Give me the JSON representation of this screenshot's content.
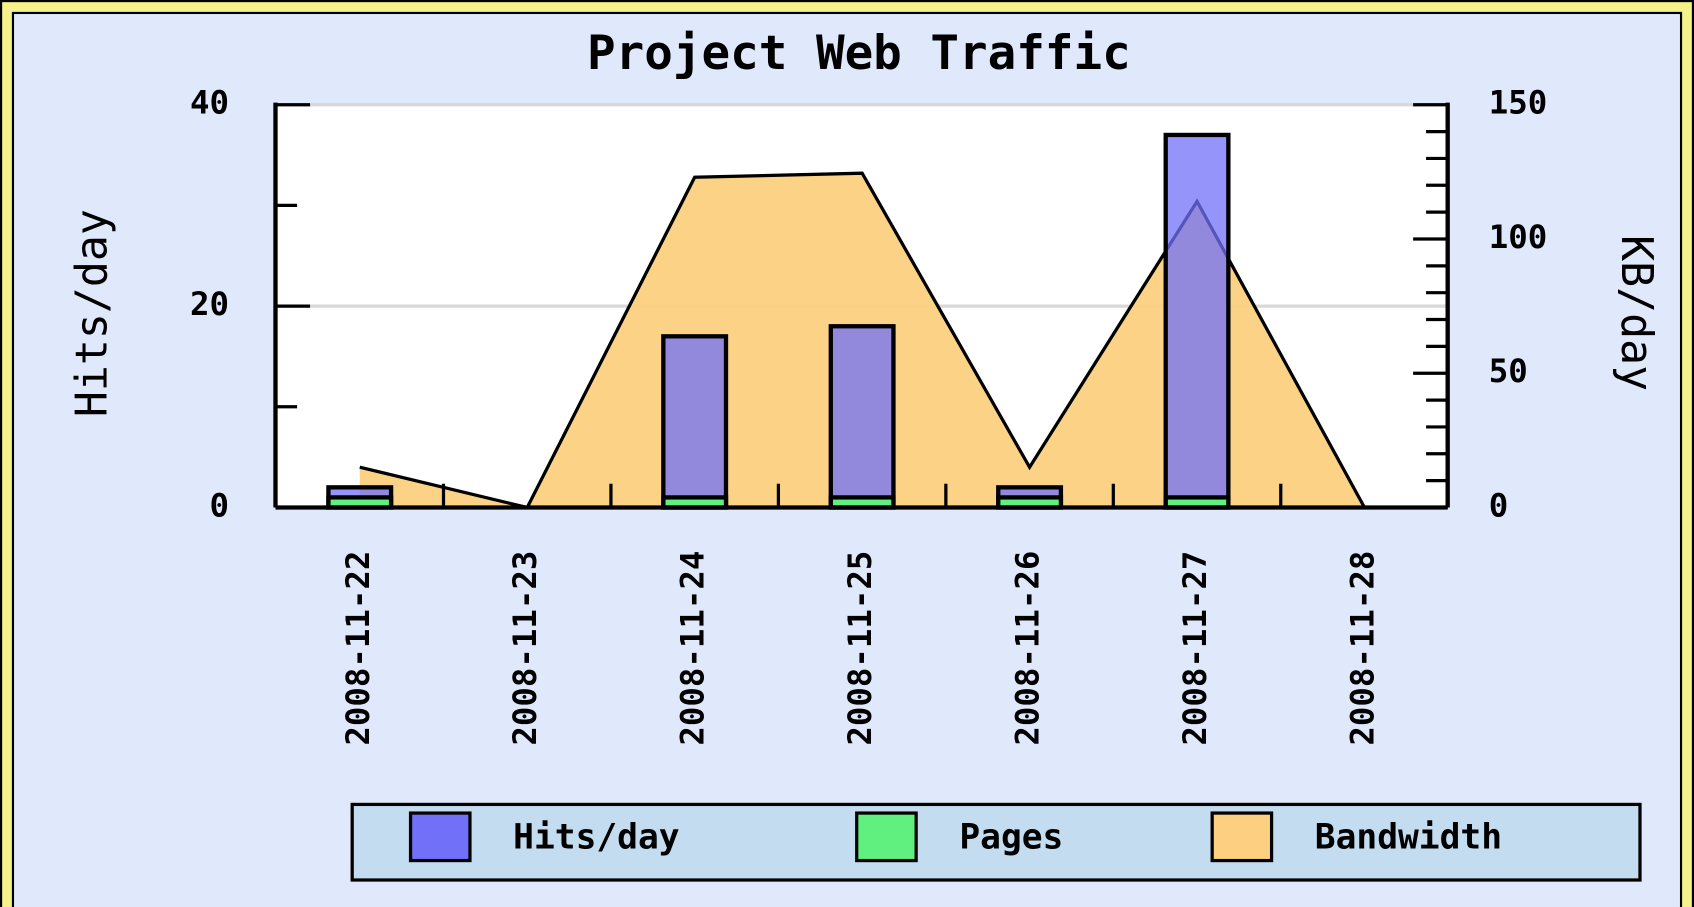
{
  "chart_data": {
    "type": "bar",
    "title": "Project Web Traffic",
    "ylabel": "Hits/day",
    "y2label": "KB/day",
    "categories": [
      "2008-11-22",
      "2008-11-23",
      "2008-11-24",
      "2008-11-25",
      "2008-11-26",
      "2008-11-27",
      "2008-11-28"
    ],
    "series": [
      {
        "name": "Hits/day",
        "type": "bar",
        "color": "#7070f8",
        "values": [
          2,
          0,
          17,
          18,
          2,
          37,
          0
        ]
      },
      {
        "name": "Pages",
        "type": "bar",
        "color": "#60f080",
        "values": [
          1,
          0,
          1,
          1,
          1,
          1,
          0
        ]
      },
      {
        "name": "Bandwidth",
        "type": "area",
        "axis": "y2",
        "color": "#fcd080",
        "values": [
          15,
          0,
          123,
          124.5,
          15,
          114,
          0
        ]
      }
    ],
    "ylim": [
      0,
      40
    ],
    "yticks": [
      0,
      20,
      40
    ],
    "yminorticks": [
      10,
      30
    ],
    "y2lim": [
      0,
      150
    ],
    "y2ticks": [
      0,
      50,
      100,
      150
    ],
    "y2minorticks": [
      10,
      20,
      30,
      40,
      60,
      70,
      80,
      90,
      110,
      120,
      130,
      140
    ],
    "grid": true
  }
}
